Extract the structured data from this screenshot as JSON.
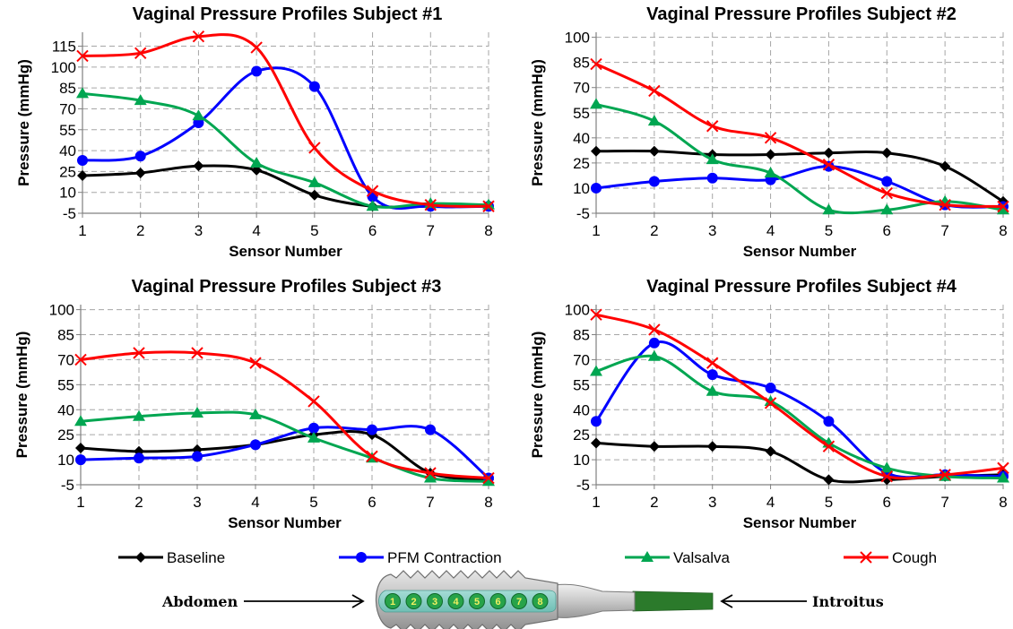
{
  "chart_data": [
    {
      "type": "line",
      "title": "Vaginal Pressure Profiles Subject #1",
      "xlabel": "Sensor Number",
      "ylabel": "Pressure (mmHg)",
      "x": [
        1,
        2,
        3,
        4,
        5,
        6,
        7,
        8
      ],
      "ylim": [
        -5,
        125
      ],
      "yticks": [
        -5,
        10,
        25,
        40,
        55,
        70,
        85,
        100,
        115
      ],
      "grid": true,
      "series": [
        {
          "name": "Baseline",
          "values": [
            22,
            24,
            29,
            26,
            8,
            0,
            0,
            0
          ]
        },
        {
          "name": "PFM Contraction",
          "values": [
            33,
            36,
            60,
            97,
            86,
            7,
            0,
            0
          ]
        },
        {
          "name": "Valsalva",
          "values": [
            81,
            76,
            65,
            31,
            17,
            0,
            2,
            1
          ]
        },
        {
          "name": "Cough",
          "values": [
            108,
            110,
            122,
            114,
            42,
            11,
            1,
            0
          ]
        }
      ]
    },
    {
      "type": "line",
      "title": "Vaginal Pressure Profiles Subject #2",
      "xlabel": "Sensor Number",
      "ylabel": "Pressure (mmHg)",
      "x": [
        1,
        2,
        3,
        4,
        5,
        6,
        7,
        8
      ],
      "ylim": [
        -5,
        103
      ],
      "yticks": [
        -5,
        10,
        25,
        40,
        55,
        70,
        85,
        100
      ],
      "grid": true,
      "series": [
        {
          "name": "Baseline",
          "values": [
            32,
            32,
            30,
            30,
            31,
            31,
            23,
            2
          ]
        },
        {
          "name": "PFM Contraction",
          "values": [
            10,
            14,
            16,
            15,
            23,
            14,
            0,
            -1
          ]
        },
        {
          "name": "Valsalva",
          "values": [
            60,
            50,
            27,
            19,
            -3,
            -3,
            2,
            -3
          ]
        },
        {
          "name": "Cough",
          "values": [
            84,
            68,
            47,
            40,
            24,
            7,
            0,
            -1
          ]
        }
      ]
    },
    {
      "type": "line",
      "title": "Vaginal Pressure Profiles Subject #3",
      "xlabel": "Sensor Number",
      "ylabel": "Pressure (mmHg)",
      "x": [
        1,
        2,
        3,
        4,
        5,
        6,
        7,
        8
      ],
      "ylim": [
        -5,
        103
      ],
      "yticks": [
        -5,
        10,
        25,
        40,
        55,
        70,
        85,
        100
      ],
      "grid": true,
      "series": [
        {
          "name": "Baseline",
          "values": [
            17,
            15,
            16,
            19,
            25,
            25,
            2,
            -2
          ]
        },
        {
          "name": "PFM Contraction",
          "values": [
            10,
            11,
            12,
            19,
            29,
            28,
            28,
            -1
          ]
        },
        {
          "name": "Valsalva",
          "values": [
            33,
            36,
            38,
            37,
            23,
            11,
            -1,
            -3
          ]
        },
        {
          "name": "Cough",
          "values": [
            70,
            74,
            74,
            68,
            45,
            12,
            2,
            -1
          ]
        }
      ]
    },
    {
      "type": "line",
      "title": "Vaginal Pressure Profiles Subject #4",
      "xlabel": "Sensor Number",
      "ylabel": "Pressure (mmHg)",
      "x": [
        1,
        2,
        3,
        4,
        5,
        6,
        7,
        8
      ],
      "ylim": [
        -5,
        103
      ],
      "yticks": [
        -5,
        10,
        25,
        40,
        55,
        70,
        85,
        100
      ],
      "grid": true,
      "series": [
        {
          "name": "Baseline",
          "values": [
            20,
            18,
            18,
            15,
            -2,
            -2,
            0,
            1
          ]
        },
        {
          "name": "PFM Contraction",
          "values": [
            33,
            80,
            61,
            53,
            33,
            2,
            1,
            0
          ]
        },
        {
          "name": "Valsalva",
          "values": [
            63,
            72,
            51,
            45,
            20,
            5,
            0,
            -1
          ]
        },
        {
          "name": "Cough",
          "values": [
            97,
            88,
            68,
            44,
            18,
            0,
            1,
            5
          ]
        }
      ]
    }
  ],
  "legend": [
    {
      "name": "Baseline",
      "color": "#000000",
      "marker": "diamond"
    },
    {
      "name": "PFM Contraction",
      "color": "#0000ff",
      "marker": "circle"
    },
    {
      "name": "Valsalva",
      "color": "#00a651",
      "marker": "triangle"
    },
    {
      "name": "Cough",
      "color": "#ff0000",
      "marker": "x"
    }
  ],
  "probe": {
    "left_label": "Abdomen",
    "right_label": "Introitus",
    "sensor_numbers": [
      "1",
      "2",
      "3",
      "4",
      "5",
      "6",
      "7",
      "8"
    ]
  }
}
